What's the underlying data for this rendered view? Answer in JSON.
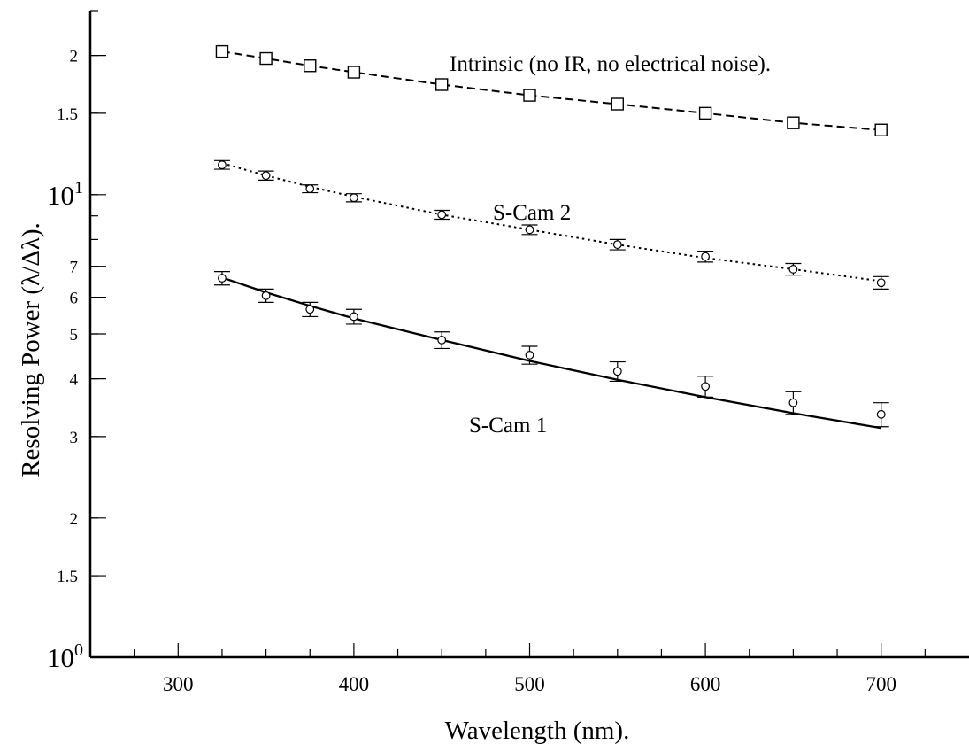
{
  "chart_data": {
    "type": "line",
    "xlabel": "Wavelength (nm).",
    "ylabel": "Resolving Power (λ/Δλ).",
    "xlim": [
      250,
      750
    ],
    "ylim": [
      1,
      25
    ],
    "yscale": "log",
    "x_ticks": [
      300,
      400,
      500,
      600,
      700
    ],
    "y_ticks": [
      {
        "value": 1,
        "base": "10",
        "exp": "0"
      },
      {
        "value": 1.5,
        "label": "1.5"
      },
      {
        "value": 2,
        "label": "2"
      },
      {
        "value": 3,
        "label": "3"
      },
      {
        "value": 4,
        "label": "4"
      },
      {
        "value": 5,
        "label": "5"
      },
      {
        "value": 6,
        "label": "6"
      },
      {
        "value": 7,
        "label": "7"
      },
      {
        "value": 10,
        "base": "10",
        "exp": "1"
      },
      {
        "value": 15,
        "label": "1.5"
      },
      {
        "value": 20,
        "label": "2"
      }
    ],
    "grid": false,
    "series": [
      {
        "name": "Intrinsic (no IR, no electrical noise).",
        "marker": "square",
        "line_style": "dashed",
        "x": [
          325,
          350,
          375,
          400,
          450,
          500,
          550,
          600,
          650,
          700
        ],
        "y": [
          20.4,
          19.7,
          19.0,
          18.4,
          17.3,
          16.4,
          15.7,
          15.0,
          14.3,
          13.8
        ],
        "fit": [
          20.4,
          19.7,
          19.0,
          18.4,
          17.3,
          16.4,
          15.7,
          15.0,
          14.3,
          13.8
        ]
      },
      {
        "name": "S-Cam 2",
        "marker": "circle",
        "line_style": "dotted",
        "x": [
          325,
          350,
          375,
          400,
          450,
          500,
          550,
          600,
          650,
          700
        ],
        "y": [
          11.6,
          11.0,
          10.3,
          9.85,
          9.05,
          8.4,
          7.8,
          7.35,
          6.9,
          6.45
        ],
        "err": [
          0.25,
          0.25,
          0.2,
          0.2,
          0.2,
          0.2,
          0.2,
          0.2,
          0.2,
          0.2
        ],
        "fit": [
          11.7,
          11.0,
          10.4,
          9.9,
          9.05,
          8.4,
          7.8,
          7.3,
          6.9,
          6.5
        ]
      },
      {
        "name": "S-Cam 1",
        "marker": "circle",
        "line_style": "solid",
        "x": [
          325,
          350,
          375,
          400,
          450,
          500,
          550,
          600,
          650,
          700
        ],
        "y": [
          6.6,
          6.05,
          5.65,
          5.45,
          4.85,
          4.5,
          4.15,
          3.85,
          3.55,
          3.35
        ],
        "err": [
          0.22,
          0.2,
          0.2,
          0.2,
          0.2,
          0.2,
          0.2,
          0.2,
          0.2,
          0.2
        ],
        "fit": [
          6.62,
          6.15,
          5.75,
          5.4,
          4.85,
          4.37,
          3.98,
          3.65,
          3.37,
          3.13
        ]
      }
    ]
  }
}
